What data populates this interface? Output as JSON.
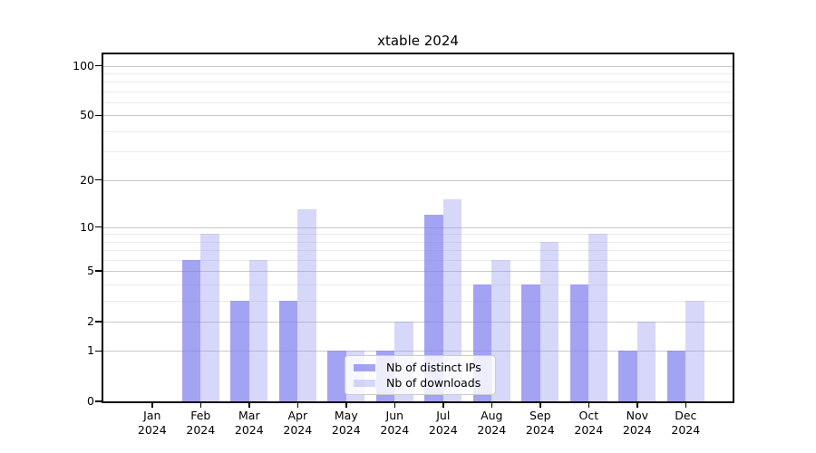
{
  "chart_data": {
    "type": "bar",
    "title": "xtable 2024",
    "categories": [
      "Jan 2024",
      "Feb 2024",
      "Mar 2024",
      "Apr 2024",
      "May 2024",
      "Jun 2024",
      "Jul 2024",
      "Aug 2024",
      "Sep 2024",
      "Oct 2024",
      "Nov 2024",
      "Dec 2024"
    ],
    "series": [
      {
        "name": "Nb of distinct IPs",
        "color": "rgba(128,128,238,0.72)",
        "values": [
          0,
          6,
          3,
          3,
          1,
          1,
          12,
          4,
          4,
          4,
          1,
          1
        ]
      },
      {
        "name": "Nb of downloads",
        "color": "rgba(150,150,242,0.38)",
        "values": [
          0,
          9,
          6,
          13,
          1,
          2,
          15,
          6,
          8,
          9,
          2,
          3
        ]
      }
    ],
    "xlabel": "",
    "ylabel": "",
    "y_scale": "log10(1+y)",
    "ylim": [
      0,
      117
    ],
    "yticks": [
      0,
      1,
      2,
      5,
      10,
      20,
      50,
      100
    ],
    "minor_gridlines": [
      3,
      4,
      6,
      7,
      8,
      9,
      30,
      40,
      60,
      70,
      80,
      90
    ],
    "grid": true,
    "legend_position": "lower center"
  },
  "legend": {
    "items": [
      {
        "label": "Nb of distinct IPs"
      },
      {
        "label": "Nb of downloads"
      }
    ]
  }
}
